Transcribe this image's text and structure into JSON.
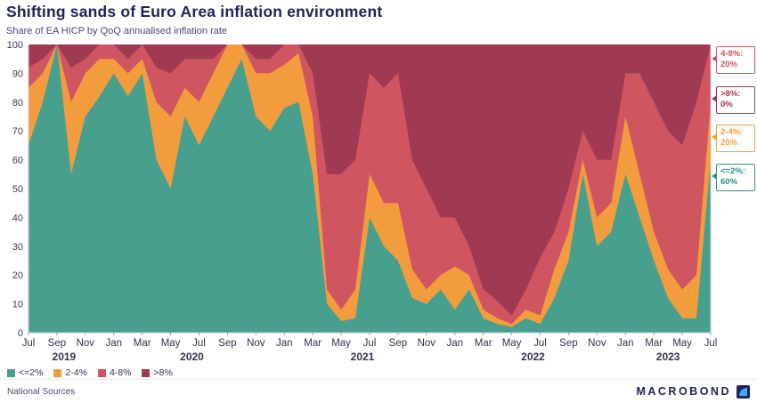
{
  "chart_data": {
    "type": "area",
    "stacked": true,
    "stack_total": 100,
    "title": "Shifting sands of Euro Area inflation environment",
    "subtitle": "Share of EA HICP by QoQ annualised inflation rate",
    "xlabel": "",
    "ylabel": "",
    "ylim": [
      0,
      100
    ],
    "y_ticks": [
      0,
      10,
      20,
      30,
      40,
      50,
      60,
      70,
      80,
      90,
      100
    ],
    "grid": false,
    "legend_position": "bottom-left",
    "categories": [
      "Jul 2019",
      "Aug 2019",
      "Sep 2019",
      "Oct 2019",
      "Nov 2019",
      "Dec 2019",
      "Jan 2020",
      "Feb 2020",
      "Mar 2020",
      "Apr 2020",
      "May 2020",
      "Jun 2020",
      "Jul 2020",
      "Aug 2020",
      "Sep 2020",
      "Oct 2020",
      "Nov 2020",
      "Dec 2020",
      "Jan 2021",
      "Feb 2021",
      "Mar 2021",
      "Apr 2021",
      "May 2021",
      "Jun 2021",
      "Jul 2021",
      "Aug 2021",
      "Sep 2021",
      "Oct 2021",
      "Nov 2021",
      "Dec 2021",
      "Jan 2022",
      "Feb 2022",
      "Mar 2022",
      "Apr 2022",
      "May 2022",
      "Jun 2022",
      "Jul 2022",
      "Aug 2022",
      "Sep 2022",
      "Oct 2022",
      "Nov 2022",
      "Dec 2022",
      "Jan 2023",
      "Feb 2023",
      "Mar 2023",
      "Apr 2023",
      "May 2023",
      "Jun 2023",
      "Jul 2023"
    ],
    "series": [
      {
        "name": "<=2%",
        "color": "#47A08E",
        "values": [
          65,
          80,
          100,
          55,
          75,
          82,
          90,
          82,
          90,
          60,
          50,
          75,
          65,
          75,
          85,
          95,
          75,
          70,
          78,
          80,
          55,
          10,
          4,
          5,
          40,
          30,
          25,
          12,
          10,
          15,
          8,
          15,
          5,
          3,
          2,
          5,
          3,
          12,
          25,
          55,
          30,
          35,
          55,
          40,
          25,
          12,
          5,
          5,
          60
        ]
      },
      {
        "name": "2-4%",
        "color": "#F39C3D",
        "values": [
          20,
          10,
          0,
          25,
          15,
          13,
          5,
          8,
          5,
          20,
          25,
          10,
          15,
          15,
          15,
          5,
          15,
          20,
          15,
          17,
          20,
          5,
          4,
          10,
          15,
          15,
          20,
          10,
          5,
          5,
          15,
          5,
          3,
          2,
          1,
          3,
          3,
          10,
          10,
          5,
          10,
          10,
          20,
          15,
          10,
          10,
          10,
          15,
          20
        ]
      },
      {
        "name": "4-8%",
        "color": "#CF5561",
        "values": [
          7,
          5,
          0,
          12,
          5,
          5,
          5,
          5,
          5,
          12,
          15,
          10,
          15,
          5,
          0,
          0,
          5,
          5,
          7,
          3,
          15,
          40,
          47,
          45,
          35,
          40,
          45,
          38,
          35,
          20,
          17,
          10,
          7,
          6,
          3,
          7,
          20,
          13,
          15,
          10,
          20,
          15,
          15,
          35,
          45,
          48,
          50,
          60,
          20
        ]
      },
      {
        "name": ">8%",
        "color": "#A03A52",
        "values": [
          8,
          5,
          0,
          8,
          5,
          0,
          0,
          5,
          0,
          8,
          10,
          5,
          5,
          5,
          0,
          0,
          5,
          5,
          0,
          0,
          10,
          45,
          45,
          40,
          10,
          15,
          10,
          40,
          50,
          60,
          60,
          70,
          85,
          89,
          94,
          85,
          74,
          65,
          50,
          30,
          40,
          40,
          10,
          10,
          20,
          30,
          35,
          20,
          0
        ]
      }
    ],
    "x_tick_step": 2,
    "x_tick_labels": [
      "Jul",
      "Sep",
      "Nov",
      "Jan",
      "Mar",
      "May",
      "Jul",
      "Sep",
      "Nov",
      "Jan",
      "Mar",
      "May",
      "Jul",
      "Sep",
      "Nov",
      "Jan",
      "Mar",
      "May",
      "Jul",
      "Sep",
      "Nov",
      "Jan",
      "Mar",
      "May",
      "Jul"
    ],
    "year_labels": [
      {
        "label": "2019",
        "center_index": 2.5
      },
      {
        "label": "2020",
        "center_index": 11.5
      },
      {
        "label": "2021",
        "center_index": 23.5
      },
      {
        "label": "2022",
        "center_index": 35.5
      },
      {
        "label": "2023",
        "center_index": 45
      }
    ]
  },
  "callouts": [
    {
      "line1": "4-8%:",
      "line2": "20%",
      "color": "#CF5561"
    },
    {
      "line1": ">8%:",
      "line2": "0%",
      "color": "#A03A52"
    },
    {
      "line1": "2-4%:",
      "line2": "20%",
      "color": "#F39C3D"
    },
    {
      "line1": "<=2%:",
      "line2": "60%",
      "color": "#2E9486"
    }
  ],
  "footer": {
    "source": "National Sources",
    "brand": "MACROBOND"
  }
}
